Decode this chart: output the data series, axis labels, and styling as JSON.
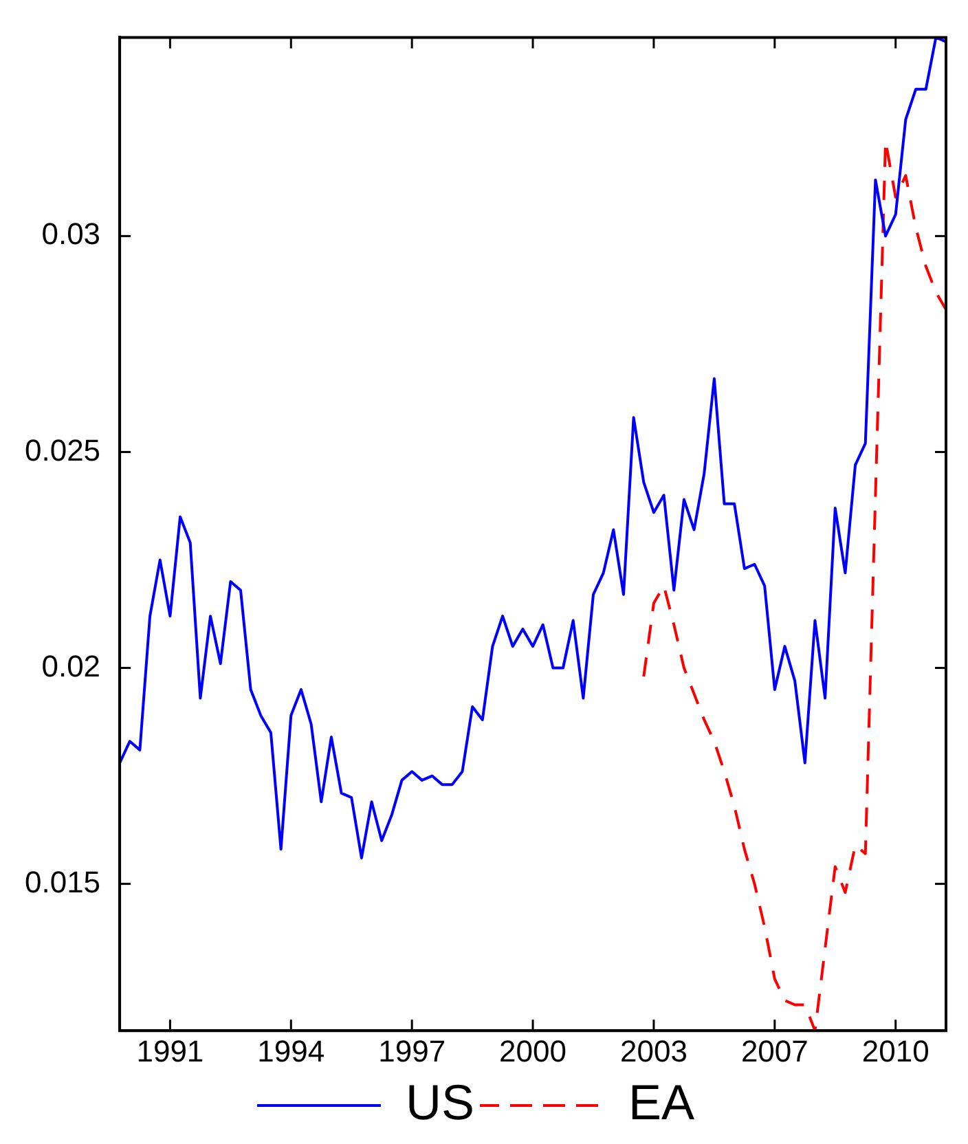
{
  "chart_data": {
    "type": "line",
    "series": [
      {
        "name": "US",
        "color": "#0000ff",
        "line_style": "solid",
        "values": [
          0.0178,
          0.0183,
          0.0181,
          0.0212,
          0.0225,
          0.0212,
          0.0235,
          0.0229,
          0.0193,
          0.0212,
          0.0201,
          0.022,
          0.0218,
          0.0195,
          0.0189,
          0.0185,
          0.0158,
          0.0189,
          0.0195,
          0.0187,
          0.0169,
          0.0184,
          0.0171,
          0.017,
          0.0156,
          0.0169,
          0.016,
          0.0166,
          0.0174,
          0.0176,
          0.0174,
          0.0175,
          0.0173,
          0.0173,
          0.0176,
          0.0191,
          0.0188,
          0.0205,
          0.0212,
          0.0205,
          0.0209,
          0.0205,
          0.021,
          0.02,
          0.02,
          0.0211,
          0.0193,
          0.0217,
          0.0222,
          0.0232,
          0.0217,
          0.0258,
          0.0243,
          0.0236,
          0.024,
          0.0218,
          0.0239,
          0.0232,
          0.0245,
          0.0267,
          0.0238,
          0.0238,
          0.0223,
          0.0224,
          0.0219,
          0.0195,
          0.0205,
          0.0197,
          0.0178,
          0.0211,
          0.0193,
          0.0237,
          0.0222,
          0.0247,
          0.0252,
          0.0313,
          0.03,
          0.0305,
          0.0327,
          0.0334,
          0.0334,
          0.0346,
          0.0345
        ]
      },
      {
        "name": "EA",
        "color": "#ff0000",
        "line_style": "dashed",
        "values": [
          null,
          null,
          null,
          null,
          null,
          null,
          null,
          null,
          null,
          null,
          null,
          null,
          null,
          null,
          null,
          null,
          null,
          null,
          null,
          null,
          null,
          null,
          null,
          null,
          null,
          null,
          null,
          null,
          null,
          null,
          null,
          null,
          null,
          null,
          null,
          null,
          null,
          null,
          null,
          null,
          null,
          null,
          null,
          null,
          null,
          null,
          null,
          null,
          null,
          null,
          null,
          null,
          0.0198,
          0.0215,
          0.0219,
          0.021,
          0.02,
          0.0194,
          0.0188,
          0.0183,
          0.0176,
          0.0168,
          0.0158,
          0.015,
          0.014,
          0.0128,
          0.0123,
          0.0122,
          0.0122,
          0.0116,
          0.0135,
          0.0154,
          0.0148,
          0.0159,
          0.0157,
          0.024,
          0.0322,
          0.0309,
          0.0314,
          0.0302,
          0.0293,
          0.0287,
          0.0283
        ]
      }
    ],
    "categories": [
      null,
      null,
      null,
      null,
      null,
      "1991",
      null,
      null,
      null,
      null,
      null,
      null,
      null,
      null,
      null,
      null,
      null,
      "1994",
      null,
      null,
      null,
      null,
      null,
      null,
      null,
      null,
      null,
      null,
      null,
      "1997",
      null,
      null,
      null,
      null,
      null,
      null,
      null,
      null,
      null,
      null,
      null,
      "2000",
      null,
      null,
      null,
      null,
      null,
      null,
      null,
      null,
      null,
      null,
      null,
      "2003",
      null,
      null,
      null,
      null,
      null,
      null,
      null,
      null,
      null,
      null,
      null,
      "2007",
      null,
      null,
      null,
      null,
      null,
      null,
      null,
      null,
      null,
      null,
      null,
      "2010",
      null,
      null,
      null,
      null,
      null
    ],
    "ylim": [
      0.0116,
      0.0346
    ],
    "yticks": [
      0.015,
      0.02,
      0.025,
      0.03
    ],
    "grid": false,
    "legend": "bottom",
    "marker": "none"
  }
}
